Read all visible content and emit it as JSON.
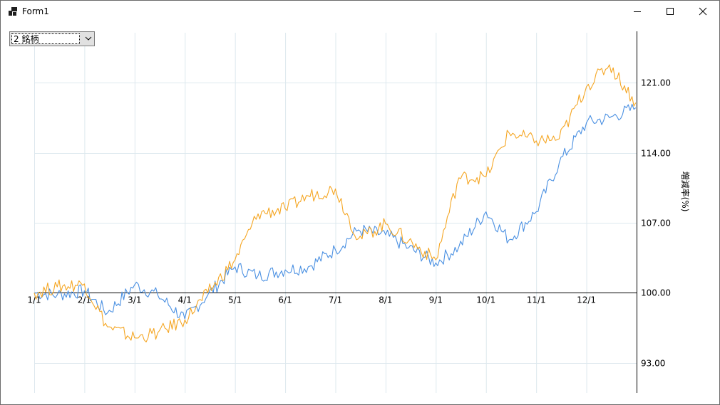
{
  "window": {
    "title": "Form1"
  },
  "combo": {
    "selected": "2 銘柄"
  },
  "chart_data": {
    "type": "line",
    "title": "",
    "xlabel": "",
    "ylabel": "増減率(%)",
    "x_ticks": [
      "1/1",
      "2/1",
      "3/1",
      "4/1",
      "5/1",
      "6/1",
      "7/1",
      "8/1",
      "9/1",
      "10/1",
      "11/1",
      "12/1"
    ],
    "y_ticks": [
      "93.00",
      "100.00",
      "107.00",
      "114.00",
      "121.00"
    ],
    "ylim": [
      90,
      126
    ],
    "grid": true,
    "axis_position": "right",
    "x_axis_crosses_at": 100,
    "series": [
      {
        "color": "#4a90e2",
        "x": [
          "1/1",
          "1/15",
          "2/1",
          "2/15",
          "3/1",
          "3/15",
          "4/1",
          "4/15",
          "5/1",
          "5/15",
          "6/1",
          "6/15",
          "7/1",
          "7/15",
          "8/1",
          "8/15",
          "9/1",
          "9/15",
          "10/1",
          "10/15",
          "11/1",
          "11/15",
          "12/1",
          "12/15",
          "12/31"
        ],
        "values": [
          100.0,
          99.8,
          100.2,
          98.0,
          100.8,
          99.8,
          97.4,
          99.8,
          102.6,
          101.7,
          102.3,
          102.6,
          104.3,
          106.3,
          105.8,
          104.5,
          103.0,
          104.6,
          108.1,
          105.3,
          108.1,
          113.0,
          117.0,
          117.5,
          118.5
        ]
      },
      {
        "color": "#f5a623",
        "x": [
          "1/1",
          "1/15",
          "2/1",
          "2/15",
          "3/1",
          "3/15",
          "4/1",
          "4/15",
          "5/1",
          "5/15",
          "6/1",
          "6/15",
          "7/1",
          "7/15",
          "8/1",
          "8/15",
          "9/1",
          "9/15",
          "10/1",
          "10/15",
          "11/1",
          "11/15",
          "12/1",
          "12/15",
          "12/31"
        ],
        "values": [
          100.0,
          100.6,
          100.9,
          96.6,
          95.5,
          96.0,
          97.3,
          100.0,
          103.3,
          107.9,
          108.4,
          109.7,
          110.4,
          105.4,
          106.9,
          105.2,
          103.3,
          111.5,
          111.6,
          116.0,
          115.2,
          115.4,
          120.6,
          122.8,
          119.0
        ]
      }
    ]
  }
}
